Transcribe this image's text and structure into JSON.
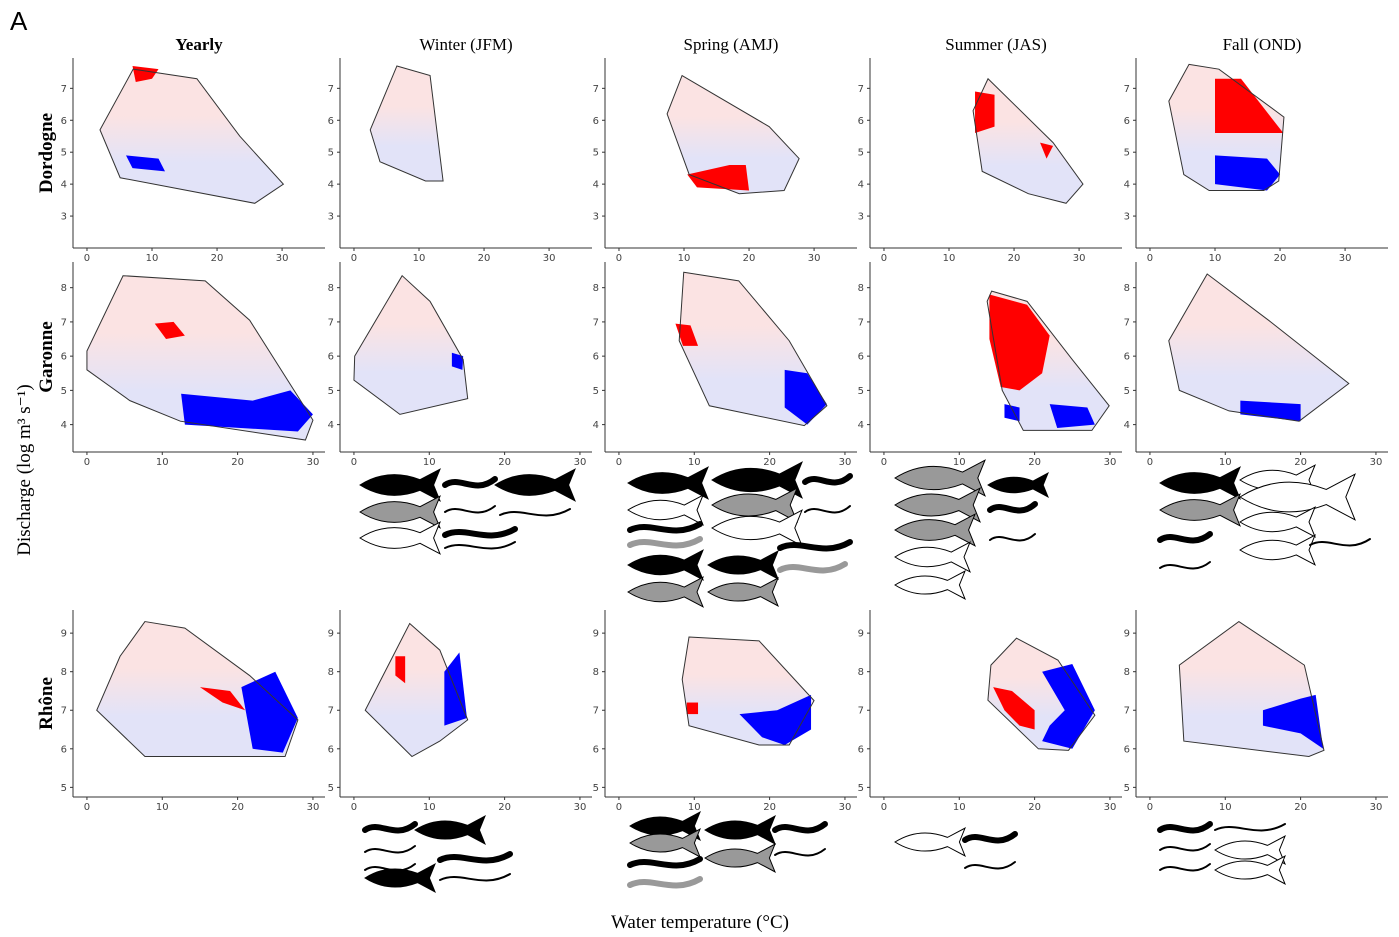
{
  "panel_label": "A",
  "column_titles": [
    "Yearly",
    "Winter (JFM)",
    "Spring (AMJ)",
    "Summer (JAS)",
    "Fall (OND)"
  ],
  "row_titles": [
    "Dordogne",
    "Garonne",
    "Rhône"
  ],
  "y_axis_label": "Discharge (log m³ s⁻¹)",
  "x_axis_label": "Water temperature (°C)",
  "colors": {
    "increase": "#ff0000",
    "decrease": "#0000ff",
    "hull_top": "#fbe3e3",
    "hull_bottom": "#e2e3f8"
  },
  "rows": [
    {
      "xlim": [
        -2.15,
        36.6
      ],
      "xticks": [
        0,
        10,
        20,
        30
      ],
      "ylim": [
        2,
        7.95
      ],
      "yticks": [
        3,
        4,
        5,
        6,
        7
      ]
    },
    {
      "xlim": [
        -1.85,
        31.6
      ],
      "xticks": [
        0,
        10,
        20,
        30
      ],
      "ylim": [
        3.2,
        8.75
      ],
      "yticks": [
        4,
        5,
        6,
        7,
        8
      ]
    },
    {
      "xlim": [
        -1.85,
        31.6
      ],
      "xticks": [
        0,
        10,
        20,
        30
      ],
      "ylim": [
        4.75,
        9.6
      ],
      "yticks": [
        5,
        6,
        7,
        8,
        9
      ]
    }
  ],
  "panels": [
    [
      {
        "hull": [
          [
            7.1,
            7.6
          ],
          [
            16.9,
            7.3
          ],
          [
            23.5,
            5.5
          ],
          [
            30.2,
            4.0
          ],
          [
            25.8,
            3.4
          ],
          [
            5.1,
            4.2
          ],
          [
            2,
            5.7
          ]
        ],
        "red": [
          [
            [
              7,
              7.7
            ],
            [
              11,
              7.6
            ],
            [
              10,
              7.3
            ],
            [
              7.5,
              7.2
            ]
          ]
        ],
        "blue": [
          [
            [
              6,
              4.9
            ],
            [
              11,
              4.8
            ],
            [
              12,
              4.4
            ],
            [
              7,
              4.5
            ]
          ]
        ]
      },
      {
        "hull": [
          [
            6.6,
            7.7
          ],
          [
            11.7,
            7.4
          ],
          [
            13.7,
            4.1
          ],
          [
            11,
            4.1
          ],
          [
            4,
            4.7
          ],
          [
            2.5,
            5.7
          ]
        ],
        "red": [],
        "blue": []
      },
      {
        "hull": [
          [
            9.7,
            7.4
          ],
          [
            23.1,
            5.8
          ],
          [
            27.7,
            4.8
          ],
          [
            25.4,
            3.8
          ],
          [
            18.5,
            3.7
          ],
          [
            10.8,
            4.3
          ],
          [
            7.4,
            6.2
          ]
        ],
        "red": [
          [
            [
              10.5,
              4.3
            ],
            [
              17,
              4.6
            ],
            [
              19.5,
              4.6
            ],
            [
              20,
              3.8
            ],
            [
              12,
              3.9
            ]
          ]
        ],
        "blue": []
      },
      {
        "hull": [
          [
            16,
            7.3
          ],
          [
            26,
            5.3
          ],
          [
            30.6,
            4.0
          ],
          [
            28,
            3.4
          ],
          [
            22.2,
            3.7
          ],
          [
            15.1,
            4.4
          ],
          [
            13.7,
            6.3
          ]
        ],
        "red": [
          [
            [
              14,
              6.9
            ],
            [
              17,
              6.8
            ],
            [
              17,
              5.8
            ],
            [
              14,
              5.6
            ]
          ],
          [
            [
              24,
              5.3
            ],
            [
              26,
              5.2
            ],
            [
              25,
              4.8
            ]
          ]
        ],
        "blue": []
      },
      {
        "hull": [
          [
            6,
            7.75
          ],
          [
            10.6,
            7.6
          ],
          [
            20.6,
            6.1
          ],
          [
            19.8,
            4.1
          ],
          [
            17.5,
            3.8
          ],
          [
            9.1,
            3.8
          ],
          [
            5.2,
            4.3
          ],
          [
            2.9,
            6.6
          ]
        ],
        "red": [
          [
            [
              10,
              7.3
            ],
            [
              14,
              7.3
            ],
            [
              20.5,
              5.6
            ],
            [
              10,
              5.6
            ]
          ]
        ],
        "blue": [
          [
            [
              10,
              4.9
            ],
            [
              18,
              4.8
            ],
            [
              20,
              4.3
            ],
            [
              18,
              3.8
            ],
            [
              10,
              4
            ]
          ]
        ]
      }
    ],
    [
      {
        "hull": [
          [
            4.8,
            8.35
          ],
          [
            15.7,
            8.2
          ],
          [
            21.6,
            7.05
          ],
          [
            30,
            4.13
          ],
          [
            29,
            3.55
          ],
          [
            12.4,
            4.1
          ],
          [
            5.7,
            4.7
          ],
          [
            0,
            5.6
          ],
          [
            0,
            6.15
          ]
        ],
        "red": [
          [
            [
              9,
              6.95
            ],
            [
              11.5,
              7.0
            ],
            [
              13,
              6.6
            ],
            [
              10.5,
              6.5
            ]
          ]
        ],
        "blue": [
          [
            [
              12.5,
              4.9
            ],
            [
              22,
              4.7
            ],
            [
              27,
              5.0
            ],
            [
              30,
              4.3
            ],
            [
              28,
              3.8
            ],
            [
              13,
              4.0
            ]
          ]
        ]
      },
      {
        "hull": [
          [
            6.4,
            8.35
          ],
          [
            10.1,
            7.6
          ],
          [
            14.5,
            5.9
          ],
          [
            15.1,
            4.76
          ],
          [
            6.1,
            4.3
          ],
          [
            0,
            5.3
          ],
          [
            0.1,
            6.0
          ]
        ],
        "red": [],
        "blue": [
          [
            [
              13,
              6.1
            ],
            [
              14.5,
              6.0
            ],
            [
              14.4,
              5.6
            ],
            [
              13,
              5.7
            ]
          ]
        ]
      },
      {
        "hull": [
          [
            8.6,
            8.45
          ],
          [
            15.9,
            8.2
          ],
          [
            22.6,
            6.45
          ],
          [
            27.6,
            4.55
          ],
          [
            24.6,
            3.97
          ],
          [
            12,
            4.55
          ],
          [
            8,
            6.45
          ]
        ],
        "red": [
          [
            [
              7.5,
              6.95
            ],
            [
              9.5,
              6.9
            ],
            [
              10.5,
              6.3
            ],
            [
              8.5,
              6.3
            ]
          ]
        ],
        "blue": [
          [
            [
              22,
              5.6
            ],
            [
              25,
              5.5
            ],
            [
              27.6,
              4.6
            ],
            [
              25,
              4.0
            ],
            [
              22,
              4.5
            ]
          ]
        ]
      },
      {
        "hull": [
          [
            14.3,
            7.9
          ],
          [
            19,
            7.6
          ],
          [
            25,
            5.9
          ],
          [
            29.9,
            4.55
          ],
          [
            27.6,
            3.83
          ],
          [
            18.5,
            3.83
          ],
          [
            15.7,
            5
          ],
          [
            13.7,
            7.6
          ]
        ],
        "red": [
          [
            [
              14,
              7.8
            ],
            [
              19,
              7.5
            ],
            [
              22,
              6.6
            ],
            [
              21,
              5.5
            ],
            [
              18,
              5.0
            ],
            [
              15.5,
              5.1
            ],
            [
              14,
              6.5
            ]
          ]
        ],
        "blue": [
          [
            [
              16,
              4.6
            ],
            [
              18,
              4.5
            ],
            [
              18,
              4.1
            ],
            [
              16,
              4.2
            ]
          ],
          [
            [
              22,
              4.6
            ],
            [
              27,
              4.5
            ],
            [
              28,
              4
            ],
            [
              23,
              3.9
            ]
          ]
        ]
      },
      {
        "hull": [
          [
            7.6,
            8.4
          ],
          [
            15.8,
            7.04
          ],
          [
            26.4,
            5.2
          ],
          [
            19.8,
            4.1
          ],
          [
            10.5,
            4.4
          ],
          [
            3.9,
            5
          ],
          [
            2.5,
            6.45
          ]
        ],
        "red": [],
        "blue": [
          [
            [
              12,
              4.7
            ],
            [
              20,
              4.6
            ],
            [
              20,
              4.1
            ],
            [
              12,
              4.3
            ]
          ]
        ]
      }
    ],
    [
      {
        "hull": [
          [
            7.7,
            9.3
          ],
          [
            13,
            9.13
          ],
          [
            21.6,
            7.9
          ],
          [
            28,
            6.75
          ],
          [
            26.3,
            5.8
          ],
          [
            20.3,
            5.8
          ],
          [
            7.7,
            5.8
          ],
          [
            1.3,
            7
          ],
          [
            4.4,
            8.4
          ]
        ],
        "red": [
          [
            [
              15,
              7.6
            ],
            [
              19,
              7.5
            ],
            [
              21,
              7.0
            ],
            [
              18,
              7.2
            ]
          ]
        ],
        "blue": [
          [
            [
              20.5,
              7.6
            ],
            [
              25,
              8.0
            ],
            [
              28,
              6.8
            ],
            [
              26,
              5.9
            ],
            [
              22,
              6.0
            ]
          ]
        ]
      },
      {
        "hull": [
          [
            7.4,
            9.25
          ],
          [
            11.4,
            8.56
          ],
          [
            15.1,
            6.75
          ],
          [
            11.4,
            6.2
          ],
          [
            7.7,
            5.8
          ],
          [
            1.5,
            7
          ]
        ],
        "red": [
          [
            [
              5.5,
              8.4
            ],
            [
              6.8,
              8.4
            ],
            [
              6.8,
              7.7
            ],
            [
              5.5,
              7.9
            ]
          ]
        ],
        "blue": [
          [
            [
              12,
              8
            ],
            [
              14,
              8.5
            ],
            [
              15,
              6.8
            ],
            [
              12,
              6.6
            ]
          ]
        ]
      },
      {
        "hull": [
          [
            9.3,
            8.9
          ],
          [
            18.6,
            8.8
          ],
          [
            25.9,
            7.25
          ],
          [
            22.6,
            6.1
          ],
          [
            18.6,
            6.1
          ],
          [
            9.3,
            6.6
          ],
          [
            8.4,
            7.8
          ]
        ],
        "red": [
          [
            [
              9,
              7.2
            ],
            [
              10.5,
              7.2
            ],
            [
              10.5,
              6.9
            ],
            [
              9,
              6.9
            ]
          ]
        ],
        "blue": [
          [
            [
              16,
              6.9
            ],
            [
              21,
              7.0
            ],
            [
              25.5,
              7.4
            ],
            [
              25.5,
              6.5
            ],
            [
              22,
              6.1
            ],
            [
              19,
              6.3
            ]
          ]
        ]
      },
      {
        "hull": [
          [
            17.6,
            8.87
          ],
          [
            23.1,
            8.3
          ],
          [
            28,
            6.87
          ],
          [
            24.5,
            5.96
          ],
          [
            20.5,
            6
          ],
          [
            13.8,
            7.26
          ],
          [
            14.2,
            8.17
          ]
        ],
        "red": [
          [
            [
              14.5,
              7.6
            ],
            [
              17,
              7.5
            ],
            [
              20,
              7.0
            ],
            [
              20,
              6.5
            ],
            [
              18,
              6.6
            ],
            [
              16,
              7.0
            ]
          ]
        ],
        "blue": [
          [
            [
              21,
              8
            ],
            [
              25,
              8.2
            ],
            [
              28,
              7
            ],
            [
              25,
              6
            ],
            [
              21,
              6.2
            ],
            [
              22,
              6.6
            ],
            [
              24,
              7
            ]
          ]
        ]
      },
      {
        "hull": [
          [
            11.8,
            9.3
          ],
          [
            20.5,
            8.17
          ],
          [
            23.1,
            5.96
          ],
          [
            21.1,
            5.8
          ],
          [
            4.5,
            6.2
          ],
          [
            3.9,
            8.17
          ]
        ],
        "red": [],
        "blue": [
          [
            [
              15,
              7.0
            ],
            [
              20,
              7.3
            ],
            [
              22,
              7.4
            ],
            [
              23,
              6.0
            ],
            [
              20,
              6.4
            ],
            [
              15,
              6.6
            ]
          ]
        ]
      }
    ]
  ]
}
